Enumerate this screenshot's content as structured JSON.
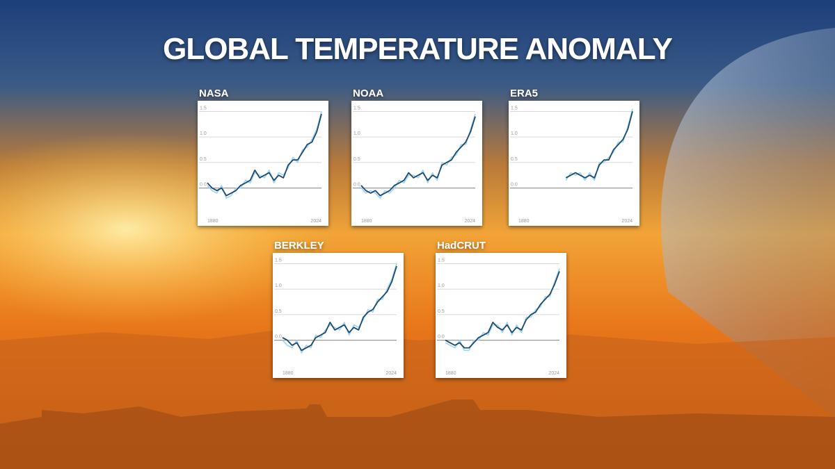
{
  "title": "GLOBAL TEMPERATURE ANOMALY",
  "chart_data": [
    {
      "type": "line",
      "title": "NASA",
      "x": [
        1880,
        1886,
        1892,
        1898,
        1904,
        1910,
        1916,
        1922,
        1928,
        1934,
        1940,
        1946,
        1952,
        1958,
        1964,
        1970,
        1976,
        1982,
        1988,
        1994,
        2000,
        2006,
        2012,
        2018,
        2024
      ],
      "series": [
        {
          "color": "#9fd3f0",
          "values": [
            0.05,
            -0.05,
            -0.1,
            0.05,
            -0.2,
            -0.15,
            0.0,
            0.0,
            0.15,
            0.1,
            0.3,
            0.25,
            0.2,
            0.35,
            0.1,
            0.3,
            0.25,
            0.4,
            0.6,
            0.5,
            0.75,
            0.8,
            0.95,
            1.15,
            1.5
          ]
        },
        {
          "color": "#1b4a6e",
          "values": [
            0.1,
            0.0,
            -0.05,
            0.0,
            -0.15,
            -0.1,
            -0.05,
            0.05,
            0.1,
            0.15,
            0.35,
            0.2,
            0.25,
            0.3,
            0.15,
            0.25,
            0.2,
            0.45,
            0.55,
            0.55,
            0.7,
            0.85,
            0.9,
            1.1,
            1.45
          ]
        }
      ],
      "xlim": [
        1880,
        2024
      ],
      "xticks": [
        1880,
        2024
      ],
      "ylim": [
        -0.4,
        1.6
      ],
      "yticks": [
        {
          "value": 0,
          "label": "0.0"
        },
        0.5,
        {
          "value": 1,
          "label": "1.0"
        },
        1.5
      ],
      "grid": true
    },
    {
      "type": "line",
      "title": "NOAA",
      "x": [
        1880,
        1886,
        1892,
        1898,
        1904,
        1910,
        1916,
        1922,
        1928,
        1934,
        1940,
        1946,
        1952,
        1958,
        1964,
        1970,
        1976,
        1982,
        1988,
        1994,
        2000,
        2006,
        2012,
        2018,
        2024
      ],
      "series": [
        {
          "color": "#9fd3f0",
          "values": [
            0.0,
            -0.1,
            -0.05,
            -0.1,
            -0.2,
            -0.05,
            -0.1,
            0.0,
            0.15,
            0.1,
            0.25,
            0.25,
            0.2,
            0.35,
            0.1,
            0.3,
            0.15,
            0.5,
            0.45,
            0.6,
            0.65,
            0.85,
            0.85,
            1.15,
            1.45
          ]
        },
        {
          "color": "#1b4a6e",
          "values": [
            0.05,
            -0.05,
            -0.1,
            -0.05,
            -0.15,
            -0.1,
            -0.05,
            0.05,
            0.1,
            0.15,
            0.3,
            0.2,
            0.25,
            0.3,
            0.15,
            0.25,
            0.2,
            0.45,
            0.5,
            0.55,
            0.7,
            0.8,
            0.9,
            1.1,
            1.4
          ]
        }
      ],
      "xlim": [
        1880,
        2024
      ],
      "xticks": [
        1880,
        2024
      ],
      "ylim": [
        -0.4,
        1.6
      ],
      "yticks": [
        {
          "value": 0,
          "label": "0.0"
        },
        0.5,
        {
          "value": 1,
          "label": "1.0"
        },
        1.5
      ],
      "grid": true
    },
    {
      "type": "line",
      "title": "ERA5",
      "x": [
        1940,
        1946,
        1952,
        1958,
        1964,
        1970,
        1976,
        1982,
        1988,
        1994,
        2000,
        2006,
        2012,
        2018,
        2024
      ],
      "series": [
        {
          "color": "#9fd3f0",
          "values": [
            0.15,
            0.3,
            0.25,
            0.3,
            0.15,
            0.3,
            0.15,
            0.5,
            0.5,
            0.6,
            0.7,
            0.9,
            0.9,
            1.2,
            1.55
          ]
        },
        {
          "color": "#1b4a6e",
          "values": [
            0.2,
            0.25,
            0.3,
            0.25,
            0.2,
            0.25,
            0.2,
            0.45,
            0.55,
            0.55,
            0.75,
            0.85,
            0.95,
            1.15,
            1.5
          ]
        }
      ],
      "xlim": [
        1880,
        2024
      ],
      "xticks": [
        1880,
        2024
      ],
      "ylim": [
        -0.4,
        1.6
      ],
      "yticks": [
        {
          "value": 0,
          "label": "0.0"
        },
        0.5,
        {
          "value": 1,
          "label": "1.0"
        },
        1.5
      ],
      "grid": true
    },
    {
      "type": "line",
      "title": "BERKLEY",
      "x": [
        1880,
        1886,
        1892,
        1898,
        1904,
        1910,
        1916,
        1922,
        1928,
        1934,
        1940,
        1946,
        1952,
        1958,
        1964,
        1970,
        1976,
        1982,
        1988,
        1994,
        2000,
        2006,
        2012,
        2018,
        2024
      ],
      "series": [
        {
          "color": "#9fd3f0",
          "values": [
            0.0,
            -0.1,
            -0.15,
            0.0,
            -0.25,
            -0.1,
            -0.15,
            0.1,
            0.05,
            0.2,
            0.3,
            0.25,
            0.2,
            0.35,
            0.1,
            0.3,
            0.25,
            0.4,
            0.6,
            0.55,
            0.8,
            0.8,
            1.0,
            1.2,
            1.5
          ]
        },
        {
          "color": "#1b4a6e",
          "values": [
            0.05,
            0.0,
            -0.1,
            -0.05,
            -0.2,
            -0.15,
            -0.1,
            0.05,
            0.1,
            0.15,
            0.35,
            0.2,
            0.25,
            0.3,
            0.15,
            0.25,
            0.2,
            0.45,
            0.55,
            0.6,
            0.75,
            0.85,
            0.95,
            1.15,
            1.45
          ]
        }
      ],
      "xlim": [
        1880,
        2024
      ],
      "xticks": [
        1880,
        2024
      ],
      "ylim": [
        -0.4,
        1.6
      ],
      "yticks": [
        {
          "value": 0,
          "label": "0.0"
        },
        0.5,
        {
          "value": 1,
          "label": "1.0"
        },
        1.5
      ],
      "grid": true
    },
    {
      "type": "line",
      "title": "HadCRUT",
      "x": [
        1880,
        1886,
        1892,
        1898,
        1904,
        1910,
        1916,
        1922,
        1928,
        1934,
        1940,
        1946,
        1952,
        1958,
        1964,
        1970,
        1976,
        1982,
        1988,
        1994,
        2000,
        2006,
        2012,
        2018,
        2024
      ],
      "series": [
        {
          "color": "#9fd3f0",
          "values": [
            -0.05,
            -0.1,
            -0.15,
            0.0,
            -0.2,
            -0.2,
            0.0,
            0.0,
            0.15,
            0.1,
            0.3,
            0.3,
            0.15,
            0.35,
            0.1,
            0.3,
            0.15,
            0.45,
            0.45,
            0.6,
            0.65,
            0.85,
            0.85,
            1.15,
            1.4
          ]
        },
        {
          "color": "#1b4a6e",
          "values": [
            0.0,
            -0.05,
            -0.1,
            -0.05,
            -0.15,
            -0.15,
            -0.05,
            0.05,
            0.1,
            0.15,
            0.35,
            0.25,
            0.2,
            0.3,
            0.15,
            0.25,
            0.2,
            0.4,
            0.5,
            0.55,
            0.7,
            0.8,
            0.9,
            1.1,
            1.35
          ]
        }
      ],
      "xlim": [
        1880,
        2024
      ],
      "xticks": [
        1880,
        2024
      ],
      "ylim": [
        -0.4,
        1.6
      ],
      "yticks": [
        {
          "value": 0,
          "label": "0.0"
        },
        0.5,
        {
          "value": 1,
          "label": "1.0"
        },
        1.5
      ],
      "grid": true
    }
  ]
}
